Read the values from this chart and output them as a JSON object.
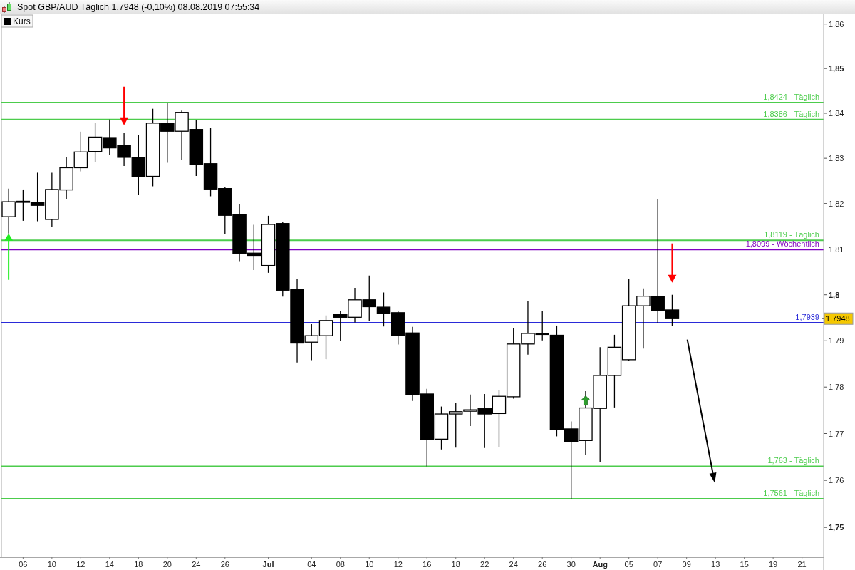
{
  "chart_data": {
    "type": "candlestick",
    "title": "Spot GBP/AUD Täglich 1,7948 (-0,10%) 08.08.2019 07:55:34",
    "categories": [
      null,
      "06",
      null,
      "10",
      null,
      "12",
      null,
      "14",
      null,
      "18",
      null,
      "20",
      null,
      "24",
      null,
      "26",
      null,
      null,
      "Jul",
      null,
      null,
      "04",
      null,
      "08",
      null,
      "10",
      null,
      "12",
      null,
      "16",
      null,
      "18",
      null,
      "22",
      null,
      "24",
      null,
      "26",
      null,
      "30",
      null,
      "Aug",
      null,
      "05",
      null,
      "07",
      null,
      "09",
      null,
      "13",
      null,
      "15",
      null,
      "19",
      null,
      "21",
      null
    ],
    "series": [
      {
        "name": "Kurs",
        "color": "#000000",
        "ohlc": [
          [
            1.8171,
            1.8233,
            1.8134,
            1.8204
          ],
          [
            1.8205,
            1.8231,
            1.8162,
            1.8204
          ],
          [
            1.8203,
            1.8268,
            1.8161,
            1.8196
          ],
          [
            1.8165,
            1.8268,
            1.8148,
            1.8231
          ],
          [
            1.823,
            1.8303,
            1.821,
            1.8279
          ],
          [
            1.8279,
            1.8359,
            1.8271,
            1.8314
          ],
          [
            1.8315,
            1.8379,
            1.8291,
            1.8347
          ],
          [
            1.8346,
            1.8386,
            1.8308,
            1.8323
          ],
          [
            1.8329,
            1.8356,
            1.8283,
            1.8302
          ],
          [
            1.8302,
            1.8351,
            1.8219,
            1.826
          ],
          [
            1.826,
            1.841,
            1.8238,
            1.8378
          ],
          [
            1.8378,
            1.8424,
            1.829,
            1.836
          ],
          [
            1.836,
            1.8406,
            1.8297,
            1.8402
          ],
          [
            1.8364,
            1.8385,
            1.8261,
            1.8286
          ],
          [
            1.8288,
            1.8367,
            1.8216,
            1.8232
          ],
          [
            1.8233,
            1.8236,
            1.8132,
            1.8174
          ],
          [
            1.8176,
            1.8198,
            1.8072,
            1.809
          ],
          [
            1.8091,
            1.8153,
            1.8054,
            1.8086
          ],
          [
            1.8064,
            1.8173,
            1.8048,
            1.8154
          ],
          [
            1.8156,
            1.8159,
            1.7996,
            1.801
          ],
          [
            1.8011,
            1.8034,
            1.7853,
            1.7895
          ],
          [
            1.7897,
            1.7936,
            1.7858,
            1.7911
          ],
          [
            1.7911,
            1.7955,
            1.786,
            1.7944
          ],
          [
            1.7958,
            1.7964,
            1.7899,
            1.7951
          ],
          [
            1.7951,
            1.8015,
            1.794,
            1.7989
          ],
          [
            1.7989,
            1.8042,
            1.7943,
            1.7974
          ],
          [
            1.7973,
            1.8005,
            1.7931,
            1.796
          ],
          [
            1.7961,
            1.7964,
            1.7892,
            1.7911
          ],
          [
            1.7917,
            1.793,
            1.777,
            1.7784
          ],
          [
            1.7785,
            1.7796,
            1.763,
            1.7687
          ],
          [
            1.7688,
            1.7758,
            1.7666,
            1.7742
          ],
          [
            1.7742,
            1.7765,
            1.767,
            1.7747
          ],
          [
            1.7748,
            1.7784,
            1.7716,
            1.7751
          ],
          [
            1.7754,
            1.7785,
            1.7669,
            1.7742
          ],
          [
            1.7743,
            1.7793,
            1.7671,
            1.778
          ],
          [
            1.7779,
            1.7927,
            1.7775,
            1.7893
          ],
          [
            1.7893,
            1.7986,
            1.787,
            1.7916
          ],
          [
            1.7916,
            1.7964,
            1.7901,
            1.7914
          ],
          [
            1.7912,
            1.7933,
            1.7694,
            1.7709
          ],
          [
            1.771,
            1.7726,
            1.7561,
            1.7683
          ],
          [
            1.7685,
            1.7791,
            1.7654,
            1.7755
          ],
          [
            1.7754,
            1.7886,
            1.7639,
            1.7825
          ],
          [
            1.7825,
            1.7913,
            1.7756,
            1.7886
          ],
          [
            1.7859,
            1.8034,
            1.7856,
            1.7976
          ],
          [
            1.7976,
            1.8014,
            1.7883,
            1.7997
          ],
          [
            1.7997,
            1.8209,
            1.7939,
            1.7966
          ],
          [
            1.7967,
            1.8,
            1.7932,
            1.7948
          ],
          null,
          null,
          null,
          null,
          null,
          null,
          null,
          null,
          null,
          null
        ]
      }
    ],
    "ylim": [
      1.7437,
      1.8622
    ],
    "yticks": [
      {
        "value": 1.75,
        "label": "1,75"
      },
      {
        "value": 1.76,
        "label": "1,76"
      },
      {
        "value": 1.77,
        "label": "1,77"
      },
      {
        "value": 1.78,
        "label": "1,78"
      },
      {
        "value": 1.79,
        "label": "1,79"
      },
      {
        "value": 1.8,
        "label": "1,8"
      },
      {
        "value": 1.81,
        "label": "1,81"
      },
      {
        "value": 1.82,
        "label": "1,82"
      },
      {
        "value": 1.83,
        "label": "1,83"
      },
      {
        "value": 1.84,
        "label": "1,84"
      },
      {
        "value": 1.85,
        "label": "1,85"
      },
      {
        "value": 1.86,
        "label": "1,86"
      }
    ],
    "log": true,
    "legend": "top left",
    "ref_lines": [
      {
        "axis": "y",
        "value": 1.8424,
        "label": "1,8424 - Täglich",
        "color": "#4ccc4c"
      },
      {
        "axis": "y",
        "value": 1.8386,
        "label": "1,8386 - Täglich",
        "color": "#4ccc4c"
      },
      {
        "axis": "y",
        "value": 1.8119,
        "label": "1,8119 - Täglich",
        "color": "#4ccc4c"
      },
      {
        "axis": "y",
        "value": 1.8099,
        "label": "1,8099 - Wöchentlich",
        "color": "#8000c0"
      },
      {
        "axis": "y",
        "value": 1.7939,
        "label": "1,7939",
        "color": "#2a2ad8"
      },
      {
        "axis": "y",
        "value": 1.763,
        "label": "1,763 - Täglich",
        "color": "#4ccc4c"
      },
      {
        "axis": "y",
        "value": 1.7561,
        "label": "1,7561 - Täglich",
        "color": "#4ccc4c"
      }
    ],
    "annotations": [
      {
        "text": "1,7948",
        "y": 1.7948
      }
    ]
  }
}
